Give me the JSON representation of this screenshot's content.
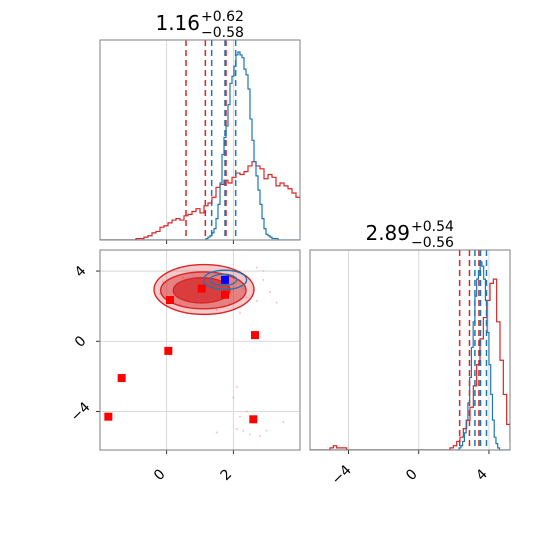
{
  "chart_data": [
    {
      "panel": "marginal-x",
      "type": "histogram",
      "title": {
        "value": "1.16",
        "plus": "+0.62",
        "minus": "−0.58"
      },
      "xlim": [
        -2,
        4
      ],
      "grid": true,
      "series": [
        {
          "name": "",
          "color": "#d62728",
          "bin_edges_start": -2,
          "bin_width": 0.12,
          "counts": [
            0,
            0,
            0,
            0,
            0,
            0,
            0,
            0,
            0,
            1,
            1,
            2,
            3,
            5,
            6,
            9,
            10,
            12,
            14,
            15,
            14,
            17,
            18,
            20,
            22,
            19,
            24,
            26,
            30,
            37,
            39,
            42,
            40,
            44,
            47,
            46,
            48,
            52,
            55,
            52,
            50,
            43,
            46,
            44,
            38,
            40,
            38,
            36,
            33,
            30,
            29,
            24,
            22,
            19,
            14,
            8,
            7,
            4,
            2,
            1,
            0,
            0,
            0,
            0,
            0,
            0,
            0,
            0,
            0,
            0
          ],
          "quantiles": [
            0.58,
            1.16,
            1.78
          ]
        },
        {
          "name": "",
          "color": "#1f77b4",
          "bin_edges_start": -2,
          "bin_width": 0.06,
          "counts": [
            0,
            0,
            0,
            0,
            0,
            0,
            0,
            0,
            0,
            0,
            0,
            0,
            0,
            0,
            0,
            0,
            0,
            0,
            0,
            0,
            0,
            0,
            0,
            0,
            0,
            0,
            0,
            0,
            0,
            0,
            0,
            0,
            0,
            0,
            0,
            0,
            0,
            0,
            0,
            0,
            0,
            0,
            0,
            0,
            0,
            0,
            0,
            0,
            0,
            0,
            0,
            0,
            0,
            1,
            2,
            3,
            5,
            8,
            15,
            25,
            40,
            60,
            72,
            80,
            95,
            110,
            115,
            122,
            130,
            132,
            130,
            128,
            120,
            116,
            106,
            85,
            70,
            55,
            45,
            35,
            25,
            15,
            8,
            4,
            3,
            2,
            1,
            1,
            1,
            0,
            0,
            0,
            0,
            0,
            0,
            0,
            0,
            0,
            0,
            0
          ],
          "quantiles": [
            1.35,
            1.75,
            2.07
          ]
        }
      ]
    },
    {
      "panel": "marginal-y",
      "type": "histogram",
      "title": {
        "value": "2.89",
        "plus": "+0.54",
        "minus": "−0.56"
      },
      "xlim": [
        -6.2,
        5.2
      ],
      "xticks": [
        -4,
        0,
        4
      ],
      "grid": true,
      "series": [
        {
          "name": "",
          "color": "#d62728",
          "bin_edges_start": -6.2,
          "bin_width": 0.19,
          "counts": [
            0,
            0,
            0,
            0,
            0,
            0,
            1,
            2,
            1,
            1,
            1,
            0,
            0,
            0,
            0,
            0,
            0,
            0,
            0,
            0,
            0,
            0,
            0,
            0,
            0,
            0,
            0,
            0,
            0,
            0,
            0,
            0,
            0,
            0,
            0,
            0,
            0,
            0,
            0,
            0,
            0,
            0,
            1,
            2,
            4,
            6,
            10,
            14,
            20,
            30,
            40,
            52,
            62,
            70,
            78,
            80,
            60,
            42,
            26,
            12,
            4,
            1
          ],
          "quantiles": [
            2.33,
            2.89,
            3.43
          ]
        },
        {
          "name": "",
          "color": "#1f77b4",
          "bin_edges_start": -6.2,
          "bin_width": 0.1,
          "counts": [
            0,
            0,
            0,
            0,
            0,
            0,
            0,
            0,
            0,
            0,
            0,
            0,
            0,
            0,
            0,
            0,
            0,
            0,
            0,
            0,
            0,
            0,
            0,
            0,
            0,
            0,
            0,
            0,
            0,
            0,
            0,
            0,
            0,
            0,
            0,
            0,
            0,
            0,
            0,
            0,
            0,
            0,
            0,
            0,
            0,
            0,
            0,
            0,
            0,
            0,
            0,
            0,
            0,
            0,
            0,
            0,
            0,
            0,
            0,
            0,
            0,
            0,
            0,
            0,
            0,
            0,
            0,
            0,
            0,
            0,
            0,
            0,
            0,
            0,
            0,
            0,
            0,
            0,
            0,
            0,
            0,
            0,
            0,
            0,
            0,
            1,
            2,
            4,
            8,
            14,
            22,
            34,
            48,
            60,
            72,
            80,
            84,
            88,
            86,
            80,
            70,
            55,
            40,
            26,
            14,
            6,
            3,
            1,
            0,
            0,
            0,
            0,
            0,
            0,
            0
          ],
          "quantiles": [
            3.2,
            3.52,
            3.86
          ]
        }
      ]
    },
    {
      "panel": "joint",
      "type": "scatter",
      "xlim": [
        -2,
        4
      ],
      "ylim": [
        -6.2,
        5.2
      ],
      "xticks": [
        0,
        2
      ],
      "yticks": [
        -4,
        0,
        4
      ],
      "grid": true,
      "red_contours": [
        {
          "cx": 1.12,
          "cy": 2.95,
          "rx": 1.5,
          "ry": 1.42,
          "opacity": 0.25
        },
        {
          "cx": 1.1,
          "cy": 2.9,
          "rx": 1.28,
          "ry": 1.05,
          "opacity": 0.45
        },
        {
          "cx": 1.05,
          "cy": 2.9,
          "rx": 0.85,
          "ry": 0.72,
          "opacity": 0.75
        }
      ],
      "blue_contours": [
        {
          "cx": 1.75,
          "cy": 3.5,
          "rx": 0.65,
          "ry": 0.55
        },
        {
          "cx": 1.7,
          "cy": 3.5,
          "rx": 0.4,
          "ry": 0.32
        }
      ],
      "red_points": [
        {
          "x": -1.75,
          "y": -4.3
        },
        {
          "x": -1.35,
          "y": -2.1
        },
        {
          "x": 0.05,
          "y": -0.55
        },
        {
          "x": 0.1,
          "y": 2.35
        },
        {
          "x": 1.05,
          "y": 3.0
        },
        {
          "x": 1.75,
          "y": 2.65
        },
        {
          "x": 2.65,
          "y": 0.35
        },
        {
          "x": 2.6,
          "y": -4.45
        }
      ],
      "blue_points": [
        {
          "x": 1.75,
          "y": 3.5
        }
      ],
      "scatter_points": [
        {
          "x": 2.3,
          "y": -5.1
        },
        {
          "x": 2.5,
          "y": -5.3
        },
        {
          "x": 2.1,
          "y": -5.0
        },
        {
          "x": 3.5,
          "y": -4.6
        },
        {
          "x": 2.8,
          "y": -5.4
        },
        {
          "x": 2.1,
          "y": -2.6
        },
        {
          "x": 2.0,
          "y": -3.2
        },
        {
          "x": 2.2,
          "y": -4.3
        },
        {
          "x": 2.4,
          "y": -4.0
        },
        {
          "x": 1.5,
          "y": -5.2
        },
        {
          "x": 3.0,
          "y": -5.1
        },
        {
          "x": 1.5,
          "y": 1.8
        },
        {
          "x": 2.2,
          "y": 1.6
        },
        {
          "x": 2.7,
          "y": 2.3
        },
        {
          "x": 3.3,
          "y": 2.2
        },
        {
          "x": 2.9,
          "y": 3.5
        },
        {
          "x": 2.9,
          "y": 4.0
        },
        {
          "x": 0.5,
          "y": 3.6
        },
        {
          "x": 0.2,
          "y": 2.8
        },
        {
          "x": -0.1,
          "y": 3.4
        },
        {
          "x": 2.6,
          "y": 2.9
        },
        {
          "x": 1.9,
          "y": 2.1
        },
        {
          "x": 2.4,
          "y": 2.5
        },
        {
          "x": 1.3,
          "y": 3.9
        },
        {
          "x": 2.3,
          "y": 3.0
        },
        {
          "x": 3.1,
          "y": 2.8
        },
        {
          "x": 2.7,
          "y": 4.2
        },
        {
          "x": 2.0,
          "y": 2.9
        },
        {
          "x": 0.4,
          "y": 2.1
        },
        {
          "x": -0.2,
          "y": 2.7
        }
      ]
    }
  ]
}
